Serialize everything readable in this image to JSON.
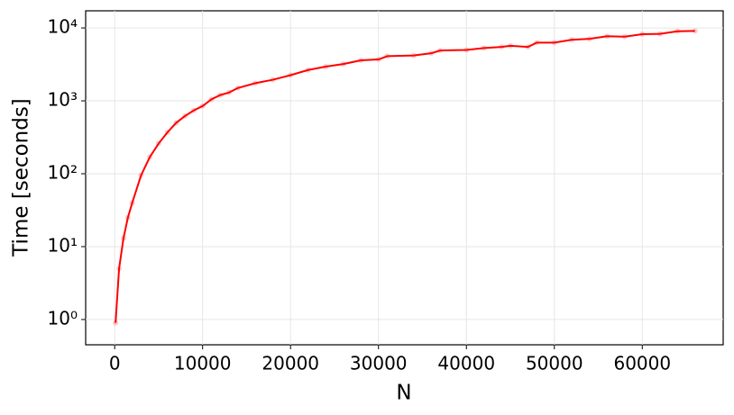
{
  "chart_data": {
    "type": "line",
    "xlabel": "N",
    "ylabel": "Time [seconds]",
    "x": [
      100,
      500,
      1000,
      1500,
      2000,
      3000,
      4000,
      5000,
      6000,
      7000,
      8000,
      9000,
      10000,
      11000,
      12000,
      13000,
      14000,
      16000,
      18000,
      20000,
      22000,
      24000,
      26000,
      28000,
      30000,
      31000,
      34000,
      36000,
      37000,
      40000,
      42000,
      44000,
      45000,
      47000,
      48000,
      50000,
      52000,
      54000,
      56000,
      58000,
      60000,
      62000,
      64000,
      66000
    ],
    "series": [
      {
        "color": "#ff0000",
        "values": [
          0.9,
          5,
          13,
          25,
          40,
          95,
          170,
          260,
          370,
          500,
          620,
          740,
          850,
          1050,
          1200,
          1300,
          1500,
          1750,
          1950,
          2250,
          2650,
          2950,
          3200,
          3600,
          3700,
          4100,
          4200,
          4500,
          4900,
          5000,
          5300,
          5500,
          5700,
          5500,
          6300,
          6300,
          6900,
          7100,
          7700,
          7600,
          8200,
          8300,
          9000,
          9100
        ]
      }
    ],
    "xlim": [
      -3300,
      69200
    ],
    "xticks": [
      0,
      10000,
      20000,
      30000,
      40000,
      50000,
      60000
    ],
    "ylim": [
      0.45,
      17200
    ],
    "ylog": true,
    "yticks": [
      {
        "value": 1,
        "label": "10⁰"
      },
      {
        "value": 10,
        "label": "10¹"
      },
      {
        "value": 100,
        "label": "10²"
      },
      {
        "value": 1000,
        "label": "10³"
      },
      {
        "value": 10000,
        "label": "10⁴"
      }
    ],
    "grid": true
  }
}
